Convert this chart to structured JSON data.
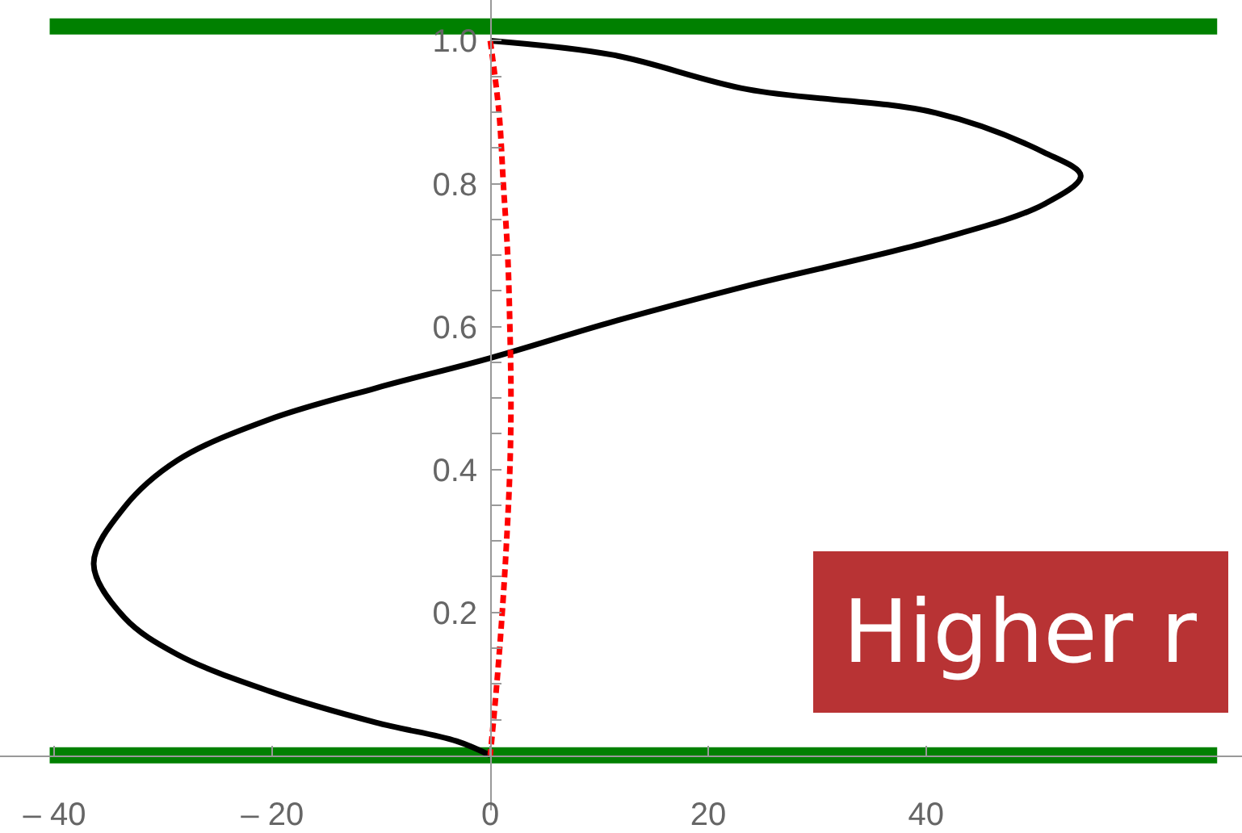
{
  "chart_data": {
    "type": "line",
    "series": [
      {
        "color": "#000000",
        "x": [
          0,
          11.3,
          23.6,
          40.9,
          50.8,
          54.2,
          50.8,
          40.9,
          23.6,
          11.3,
          0,
          -10.5,
          -20.3,
          -28.7,
          -33.6,
          -36.4,
          -33.6,
          -28.7,
          -20.3,
          -10.5,
          -3.1,
          0
        ],
        "values": [
          1.0,
          0.98,
          0.932,
          0.899,
          0.844,
          0.811,
          0.771,
          0.721,
          0.657,
          0.607,
          0.556,
          0.514,
          0.47,
          0.413,
          0.347,
          0.268,
          0.193,
          0.141,
          0.09,
          0.046,
          0.02,
          0
        ]
      },
      {
        "color": "#ff0000",
        "line_style": "dashed",
        "x": [
          0,
          0.8,
          1.2,
          1.6,
          1.8,
          1.9,
          1.8,
          1.5,
          1.1,
          0.6,
          0
        ],
        "values": [
          1.0,
          0.9,
          0.8,
          0.7,
          0.6,
          0.5,
          0.4,
          0.3,
          0.2,
          0.1,
          0
        ]
      }
    ],
    "xlim": [
      -45,
      69
    ],
    "ylim": [
      -0.077,
      1.057
    ],
    "xticks": [
      {
        "value": -40,
        "label": "– 40"
      },
      {
        "value": -20,
        "label": "– 20"
      },
      0,
      20,
      40
    ],
    "yticks": [
      {
        "value": 0.05,
        "label": null
      },
      {
        "value": 0.1,
        "label": null
      },
      {
        "value": 0.15,
        "label": null
      },
      {
        "value": 0.2,
        "label": "0.2"
      },
      {
        "value": 0.25,
        "label": null
      },
      {
        "value": 0.3,
        "label": null
      },
      {
        "value": 0.35,
        "label": null
      },
      {
        "value": 0.4,
        "label": "0.4"
      },
      {
        "value": 0.45,
        "label": null
      },
      {
        "value": 0.5,
        "label": null
      },
      {
        "value": 0.55,
        "label": null
      },
      {
        "value": 0.6,
        "label": "0.6"
      },
      {
        "value": 0.65,
        "label": null
      },
      {
        "value": 0.7,
        "label": null
      },
      {
        "value": 0.75,
        "label": null
      },
      {
        "value": 0.8,
        "label": "0.8"
      },
      {
        "value": 0.85,
        "label": null
      },
      {
        "value": 0.9,
        "label": null
      },
      {
        "value": 0.95,
        "label": null
      },
      {
        "value": 1.0,
        "label": "1.0"
      }
    ],
    "ref_lines": [
      {
        "axis": "y",
        "value": 1.02,
        "color": "#008000"
      },
      {
        "axis": "y",
        "value": 0,
        "color": "#008000"
      }
    ],
    "annotations": [
      "Higher r"
    ],
    "marker": "none",
    "line_style": "solid"
  }
}
